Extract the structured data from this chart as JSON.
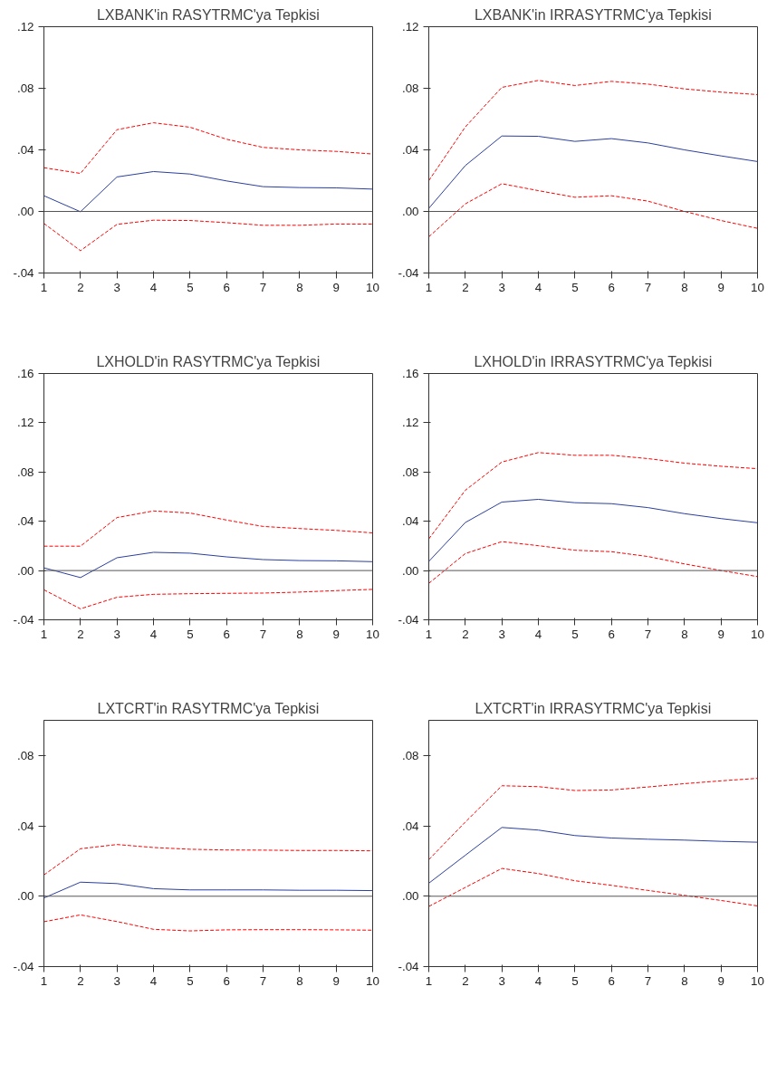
{
  "chart_data": [
    {
      "type": "line",
      "title": "LXBANK'in RASYTRMC'ya Tepkisi",
      "x": [
        1,
        2,
        3,
        4,
        5,
        6,
        7,
        8,
        9,
        10
      ],
      "xlim": [
        1,
        10
      ],
      "xticks": [
        1,
        2,
        3,
        4,
        5,
        6,
        7,
        8,
        9,
        10
      ],
      "ylim": [
        -0.04,
        0.12
      ],
      "yticks": [
        {
          "value": -0.04,
          "label": "-.04"
        },
        {
          "value": 0,
          "label": ".00"
        },
        {
          "value": 0.04,
          "label": ".04"
        },
        {
          "value": 0.08,
          "label": ".08"
        },
        {
          "value": 0.12,
          "label": ".12"
        }
      ],
      "grid": false,
      "ref_lines": [
        {
          "axis": "y",
          "value": 0,
          "color": "#555555",
          "line_style": "solid"
        }
      ],
      "series": [
        {
          "color": "#2b3f9e",
          "line_style": "solid",
          "values": [
            0.0102,
            -0.0002,
            0.0224,
            0.0259,
            0.0243,
            0.0198,
            0.0161,
            0.0155,
            0.0153,
            0.0145
          ]
        },
        {
          "color": "#ff0000",
          "line_style": "dashed",
          "values": [
            0.0284,
            0.0247,
            0.0531,
            0.0576,
            0.0547,
            0.0469,
            0.0416,
            0.04,
            0.039,
            0.0373
          ]
        },
        {
          "color": "#ff0000",
          "line_style": "dashed",
          "values": [
            -0.0078,
            -0.0255,
            -0.0084,
            -0.0057,
            -0.0059,
            -0.0073,
            -0.009,
            -0.009,
            -0.0082,
            -0.0082
          ]
        }
      ]
    },
    {
      "type": "line",
      "title": "LXBANK'in IRRASYTRMC'ya Tepkisi",
      "x": [
        1,
        2,
        3,
        4,
        5,
        6,
        7,
        8,
        9,
        10
      ],
      "xlim": [
        1,
        10
      ],
      "xticks": [
        1,
        2,
        3,
        4,
        5,
        6,
        7,
        8,
        9,
        10
      ],
      "ylim": [
        -0.04,
        0.12
      ],
      "yticks": [
        {
          "value": -0.04,
          "label": "-.04"
        },
        {
          "value": 0,
          "label": ".00"
        },
        {
          "value": 0.04,
          "label": ".04"
        },
        {
          "value": 0.08,
          "label": ".08"
        },
        {
          "value": 0.12,
          "label": ".12"
        }
      ],
      "grid": false,
      "ref_lines": [
        {
          "axis": "y",
          "value": 0,
          "color": "#555555",
          "line_style": "solid"
        }
      ],
      "series": [
        {
          "color": "#2b3f9e",
          "line_style": "solid",
          "values": [
            0.002,
            0.0298,
            0.049,
            0.0488,
            0.0455,
            0.0473,
            0.0445,
            0.04,
            0.0361,
            0.0324
          ]
        },
        {
          "color": "#ff0000",
          "line_style": "dashed",
          "values": [
            0.02,
            0.0549,
            0.0806,
            0.0851,
            0.0818,
            0.0845,
            0.0827,
            0.0796,
            0.0775,
            0.0759
          ]
        },
        {
          "color": "#ff0000",
          "line_style": "dashed",
          "values": [
            -0.0165,
            0.0049,
            0.018,
            0.0135,
            0.0092,
            0.0102,
            0.0067,
            0.0,
            -0.0059,
            -0.011
          ]
        }
      ]
    },
    {
      "type": "line",
      "title": "LXHOLD'in RASYTRMC'ya Tepkisi",
      "x": [
        1,
        2,
        3,
        4,
        5,
        6,
        7,
        8,
        9,
        10
      ],
      "xlim": [
        1,
        10
      ],
      "xticks": [
        1,
        2,
        3,
        4,
        5,
        6,
        7,
        8,
        9,
        10
      ],
      "ylim": [
        -0.04,
        0.16
      ],
      "yticks": [
        {
          "value": -0.04,
          "label": "-.04"
        },
        {
          "value": 0,
          "label": ".00"
        },
        {
          "value": 0.04,
          "label": ".04"
        },
        {
          "value": 0.08,
          "label": ".08"
        },
        {
          "value": 0.12,
          "label": ".12"
        },
        {
          "value": 0.16,
          "label": ".16"
        }
      ],
      "grid": false,
      "ref_lines": [
        {
          "axis": "y",
          "value": 0,
          "color": "#555555",
          "line_style": "solid"
        }
      ],
      "series": [
        {
          "color": "#2b3f9e",
          "line_style": "solid",
          "values": [
            0.0022,
            -0.0057,
            0.0104,
            0.0148,
            0.0141,
            0.0111,
            0.0089,
            0.0081,
            0.0079,
            0.0072
          ]
        },
        {
          "color": "#ff0000",
          "line_style": "dashed",
          "values": [
            0.0198,
            0.0198,
            0.043,
            0.0484,
            0.0467,
            0.041,
            0.0358,
            0.0341,
            0.0326,
            0.0306
          ]
        },
        {
          "color": "#ff0000",
          "line_style": "dashed",
          "values": [
            -0.0156,
            -0.0311,
            -0.0217,
            -0.0193,
            -0.0188,
            -0.0185,
            -0.0183,
            -0.0175,
            -0.0163,
            -0.0153
          ]
        }
      ]
    },
    {
      "type": "line",
      "title": "LXHOLD'in IRRASYTRMC'ya Tepkisi",
      "x": [
        1,
        2,
        3,
        4,
        5,
        6,
        7,
        8,
        9,
        10
      ],
      "xlim": [
        1,
        10
      ],
      "xticks": [
        1,
        2,
        3,
        4,
        5,
        6,
        7,
        8,
        9,
        10
      ],
      "ylim": [
        -0.04,
        0.16
      ],
      "yticks": [
        {
          "value": -0.04,
          "label": "-.04"
        },
        {
          "value": 0,
          "label": ".00"
        },
        {
          "value": 0.04,
          "label": ".04"
        },
        {
          "value": 0.08,
          "label": ".08"
        },
        {
          "value": 0.12,
          "label": ".12"
        },
        {
          "value": 0.16,
          "label": ".16"
        }
      ],
      "grid": false,
      "ref_lines": [
        {
          "axis": "y",
          "value": 0,
          "color": "#555555",
          "line_style": "solid"
        }
      ],
      "series": [
        {
          "color": "#2b3f9e",
          "line_style": "solid",
          "values": [
            0.0074,
            0.039,
            0.0556,
            0.0578,
            0.0551,
            0.0543,
            0.0511,
            0.0462,
            0.0422,
            0.0388
          ]
        },
        {
          "color": "#ff0000",
          "line_style": "dashed",
          "values": [
            0.0257,
            0.0652,
            0.0881,
            0.0958,
            0.0936,
            0.0936,
            0.0909,
            0.0872,
            0.0847,
            0.0827
          ]
        },
        {
          "color": "#ff0000",
          "line_style": "dashed",
          "values": [
            -0.0104,
            0.0138,
            0.0235,
            0.0202,
            0.0165,
            0.0153,
            0.0114,
            0.0054,
            0.0,
            -0.0049
          ]
        }
      ]
    },
    {
      "type": "line",
      "title": "LXTCRT'in RASYTRMC'ya Tepkisi",
      "x": [
        1,
        2,
        3,
        4,
        5,
        6,
        7,
        8,
        9,
        10
      ],
      "xlim": [
        1,
        10
      ],
      "xticks": [
        1,
        2,
        3,
        4,
        5,
        6,
        7,
        8,
        9,
        10
      ],
      "ylim": [
        -0.04,
        0.1
      ],
      "yticks": [
        {
          "value": -0.04,
          "label": "-.04"
        },
        {
          "value": 0,
          "label": ".00"
        },
        {
          "value": 0.04,
          "label": ".04"
        },
        {
          "value": 0.08,
          "label": ".08"
        }
      ],
      "grid": false,
      "ref_lines": [
        {
          "axis": "y",
          "value": 0,
          "color": "#555555",
          "line_style": "solid"
        }
      ],
      "series": [
        {
          "color": "#2b3f9e",
          "line_style": "solid",
          "values": [
            -0.001,
            0.008,
            0.0072,
            0.0043,
            0.0036,
            0.0036,
            0.0036,
            0.0034,
            0.0034,
            0.0032
          ]
        },
        {
          "color": "#ff0000",
          "line_style": "dashed",
          "values": [
            0.0121,
            0.027,
            0.0294,
            0.0277,
            0.0267,
            0.0263,
            0.0262,
            0.026,
            0.026,
            0.0258
          ]
        },
        {
          "color": "#ff0000",
          "line_style": "dashed",
          "values": [
            -0.0145,
            -0.0106,
            -0.0144,
            -0.0188,
            -0.0197,
            -0.0191,
            -0.019,
            -0.019,
            -0.0191,
            -0.0193
          ]
        }
      ]
    },
    {
      "type": "line",
      "title": "LXTCRT'in IRRASYTRMC'ya Tepkisi",
      "x": [
        1,
        2,
        3,
        4,
        5,
        6,
        7,
        8,
        9,
        10
      ],
      "xlim": [
        1,
        10
      ],
      "xticks": [
        1,
        2,
        3,
        4,
        5,
        6,
        7,
        8,
        9,
        10
      ],
      "ylim": [
        -0.04,
        0.1
      ],
      "yticks": [
        {
          "value": -0.04,
          "label": "-.04"
        },
        {
          "value": 0,
          "label": ".00"
        },
        {
          "value": 0.04,
          "label": ".04"
        },
        {
          "value": 0.08,
          "label": ".08"
        }
      ],
      "grid": false,
      "ref_lines": [
        {
          "axis": "y",
          "value": 0,
          "color": "#555555",
          "line_style": "solid"
        }
      ],
      "series": [
        {
          "color": "#2b3f9e",
          "line_style": "solid",
          "values": [
            0.0074,
            0.0233,
            0.0391,
            0.0376,
            0.0345,
            0.0331,
            0.0324,
            0.0319,
            0.0312,
            0.0307
          ]
        },
        {
          "color": "#ff0000",
          "line_style": "dashed",
          "values": [
            0.0208,
            0.0422,
            0.0628,
            0.0623,
            0.0601,
            0.0604,
            0.0621,
            0.064,
            0.0656,
            0.067
          ]
        },
        {
          "color": "#ff0000",
          "line_style": "dashed",
          "values": [
            -0.0058,
            0.005,
            0.0158,
            0.0129,
            0.0088,
            0.0062,
            0.0033,
            0.0005,
            -0.0024,
            -0.0055
          ]
        }
      ]
    }
  ]
}
